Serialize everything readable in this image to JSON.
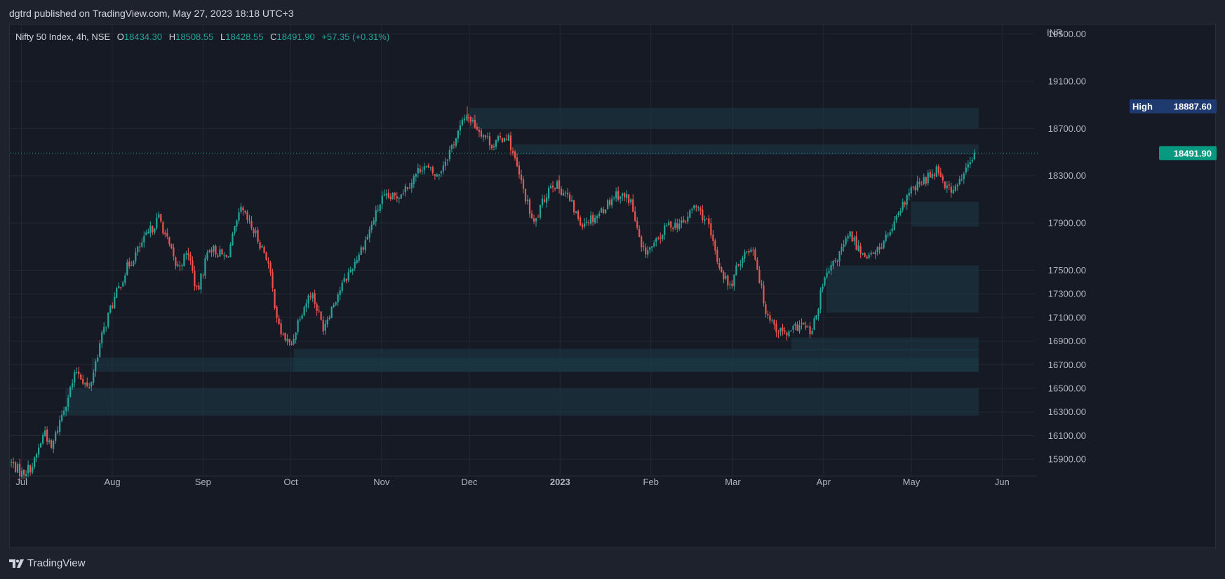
{
  "header": {
    "published_text": "dgtrd published on TradingView.com, May 27, 2023 18:18 UTC+3"
  },
  "legend": {
    "symbol": "Nifty 50 Index, 4h, NSE",
    "o_label": "O",
    "o_value": "18434.30",
    "h_label": "H",
    "h_value": "18508.55",
    "l_label": "L",
    "l_value": "18428.55",
    "c_label": "C",
    "c_value": "18491.90",
    "change": "+57.35 (+0.31%)"
  },
  "footer": {
    "brand": "TradingView"
  },
  "colors": {
    "up": "#26a69a",
    "down": "#ef5350",
    "zone": "#1c3a47",
    "high_badge": "#1e3a6e",
    "last_badge": "#089981",
    "grid": "#242832"
  },
  "chart_data": {
    "type": "candlestick",
    "title": "Nifty 50 Index, 4h, NSE",
    "currency": "INR",
    "y_range": [
      15800,
      19580
    ],
    "y_ticks": [
      {
        "value": 19500,
        "label": "19500.00"
      },
      {
        "value": 19100,
        "label": "19100.00"
      },
      {
        "value": 18700,
        "label": "18700.00"
      },
      {
        "value": 18300,
        "label": "18300.00"
      },
      {
        "value": 17900,
        "label": "17900.00"
      },
      {
        "value": 17500,
        "label": "17500.00"
      },
      {
        "value": 17300,
        "label": "17300.00"
      },
      {
        "value": 17100,
        "label": "17100.00"
      },
      {
        "value": 16900,
        "label": "16900.00"
      },
      {
        "value": 16700,
        "label": "16700.00"
      },
      {
        "value": 16500,
        "label": "16500.00"
      },
      {
        "value": 16300,
        "label": "16300.00"
      },
      {
        "value": 16100,
        "label": "16100.00"
      },
      {
        "value": 15900,
        "label": "15900.00"
      }
    ],
    "x_range_days": [
      -4,
      345
    ],
    "x_ticks": [
      {
        "day": 0,
        "label": "Jul",
        "bold": false
      },
      {
        "day": 31,
        "label": "Aug",
        "bold": false
      },
      {
        "day": 62,
        "label": "Sep",
        "bold": false
      },
      {
        "day": 92,
        "label": "Oct",
        "bold": false
      },
      {
        "day": 123,
        "label": "Nov",
        "bold": false
      },
      {
        "day": 153,
        "label": "Dec",
        "bold": false
      },
      {
        "day": 184,
        "label": "2023",
        "bold": true
      },
      {
        "day": 215,
        "label": "Feb",
        "bold": false
      },
      {
        "day": 243,
        "label": "Mar",
        "bold": false
      },
      {
        "day": 274,
        "label": "Apr",
        "bold": false
      },
      {
        "day": 304,
        "label": "May",
        "bold": false
      },
      {
        "day": 335,
        "label": "Jun",
        "bold": false
      }
    ],
    "high_label": "High",
    "high_value": 18887.6,
    "high_value_text": "18887.60",
    "last_value": 18491.9,
    "last_value_text": "18491.90",
    "zones": [
      {
        "name": "zone-supply-dec",
        "day_start": 153,
        "day_end": 327,
        "low": 18700,
        "high": 18875
      },
      {
        "name": "zone-dec-gap",
        "day_start": 168,
        "day_end": 327,
        "low": 18480,
        "high": 18565
      },
      {
        "name": "zone-may-demand",
        "day_start": 304,
        "day_end": 327,
        "low": 17870,
        "high": 18080
      },
      {
        "name": "zone-apr-demand",
        "day_start": 275,
        "day_end": 327,
        "low": 17140,
        "high": 17540
      },
      {
        "name": "zone-mar-demand",
        "day_start": 263,
        "day_end": 327,
        "low": 16820,
        "high": 16930
      },
      {
        "name": "zone-oct-demand",
        "day_start": 93,
        "day_end": 327,
        "low": 16640,
        "high": 16835
      },
      {
        "name": "zone-jul-demand",
        "day_start": 24,
        "day_end": 327,
        "low": 16640,
        "high": 16760
      },
      {
        "name": "zone-jul-lower",
        "day_start": 15,
        "day_end": 327,
        "low": 16270,
        "high": 16500
      }
    ],
    "anchors": [
      {
        "day": -4,
        "price": 15880
      },
      {
        "day": 0,
        "price": 15780
      },
      {
        "day": 4,
        "price": 15850
      },
      {
        "day": 8,
        "price": 16150
      },
      {
        "day": 10,
        "price": 15970
      },
      {
        "day": 14,
        "price": 16300
      },
      {
        "day": 19,
        "price": 16660
      },
      {
        "day": 23,
        "price": 16480
      },
      {
        "day": 27,
        "price": 16900
      },
      {
        "day": 30,
        "price": 17150
      },
      {
        "day": 36,
        "price": 17520
      },
      {
        "day": 40,
        "price": 17680
      },
      {
        "day": 47,
        "price": 17950
      },
      {
        "day": 53,
        "price": 17520
      },
      {
        "day": 57,
        "price": 17650
      },
      {
        "day": 60,
        "price": 17300
      },
      {
        "day": 64,
        "price": 17700
      },
      {
        "day": 70,
        "price": 17600
      },
      {
        "day": 75,
        "price": 18010
      },
      {
        "day": 80,
        "price": 17800
      },
      {
        "day": 84,
        "price": 17600
      },
      {
        "day": 88,
        "price": 17000
      },
      {
        "day": 92,
        "price": 16850
      },
      {
        "day": 95,
        "price": 17120
      },
      {
        "day": 99,
        "price": 17320
      },
      {
        "day": 103,
        "price": 17020
      },
      {
        "day": 108,
        "price": 17300
      },
      {
        "day": 113,
        "price": 17530
      },
      {
        "day": 118,
        "price": 17780
      },
      {
        "day": 123,
        "price": 18100
      },
      {
        "day": 128,
        "price": 18120
      },
      {
        "day": 133,
        "price": 18250
      },
      {
        "day": 137,
        "price": 18390
      },
      {
        "day": 142,
        "price": 18290
      },
      {
        "day": 147,
        "price": 18550
      },
      {
        "day": 152,
        "price": 18820
      },
      {
        "day": 156,
        "price": 18700
      },
      {
        "day": 161,
        "price": 18560
      },
      {
        "day": 166,
        "price": 18650
      },
      {
        "day": 170,
        "price": 18300
      },
      {
        "day": 175,
        "price": 17880
      },
      {
        "day": 181,
        "price": 18250
      },
      {
        "day": 186,
        "price": 18150
      },
      {
        "day": 191,
        "price": 17900
      },
      {
        "day": 197,
        "price": 17970
      },
      {
        "day": 203,
        "price": 18150
      },
      {
        "day": 208,
        "price": 18100
      },
      {
        "day": 212,
        "price": 17650
      },
      {
        "day": 216,
        "price": 17700
      },
      {
        "day": 221,
        "price": 17890
      },
      {
        "day": 226,
        "price": 17890
      },
      {
        "day": 230,
        "price": 18050
      },
      {
        "day": 234,
        "price": 17920
      },
      {
        "day": 238,
        "price": 17560
      },
      {
        "day": 242,
        "price": 17350
      },
      {
        "day": 246,
        "price": 17620
      },
      {
        "day": 250,
        "price": 17700
      },
      {
        "day": 254,
        "price": 17180
      },
      {
        "day": 258,
        "price": 17000
      },
      {
        "day": 262,
        "price": 16950
      },
      {
        "day": 266,
        "price": 17050
      },
      {
        "day": 270,
        "price": 16960
      },
      {
        "day": 274,
        "price": 17400
      },
      {
        "day": 279,
        "price": 17620
      },
      {
        "day": 283,
        "price": 17800
      },
      {
        "day": 287,
        "price": 17650
      },
      {
        "day": 291,
        "price": 17620
      },
      {
        "day": 295,
        "price": 17760
      },
      {
        "day": 299,
        "price": 17920
      },
      {
        "day": 303,
        "price": 18150
      },
      {
        "day": 308,
        "price": 18250
      },
      {
        "day": 313,
        "price": 18370
      },
      {
        "day": 316,
        "price": 18200
      },
      {
        "day": 319,
        "price": 18180
      },
      {
        "day": 322,
        "price": 18320
      },
      {
        "day": 326,
        "price": 18492
      }
    ]
  }
}
